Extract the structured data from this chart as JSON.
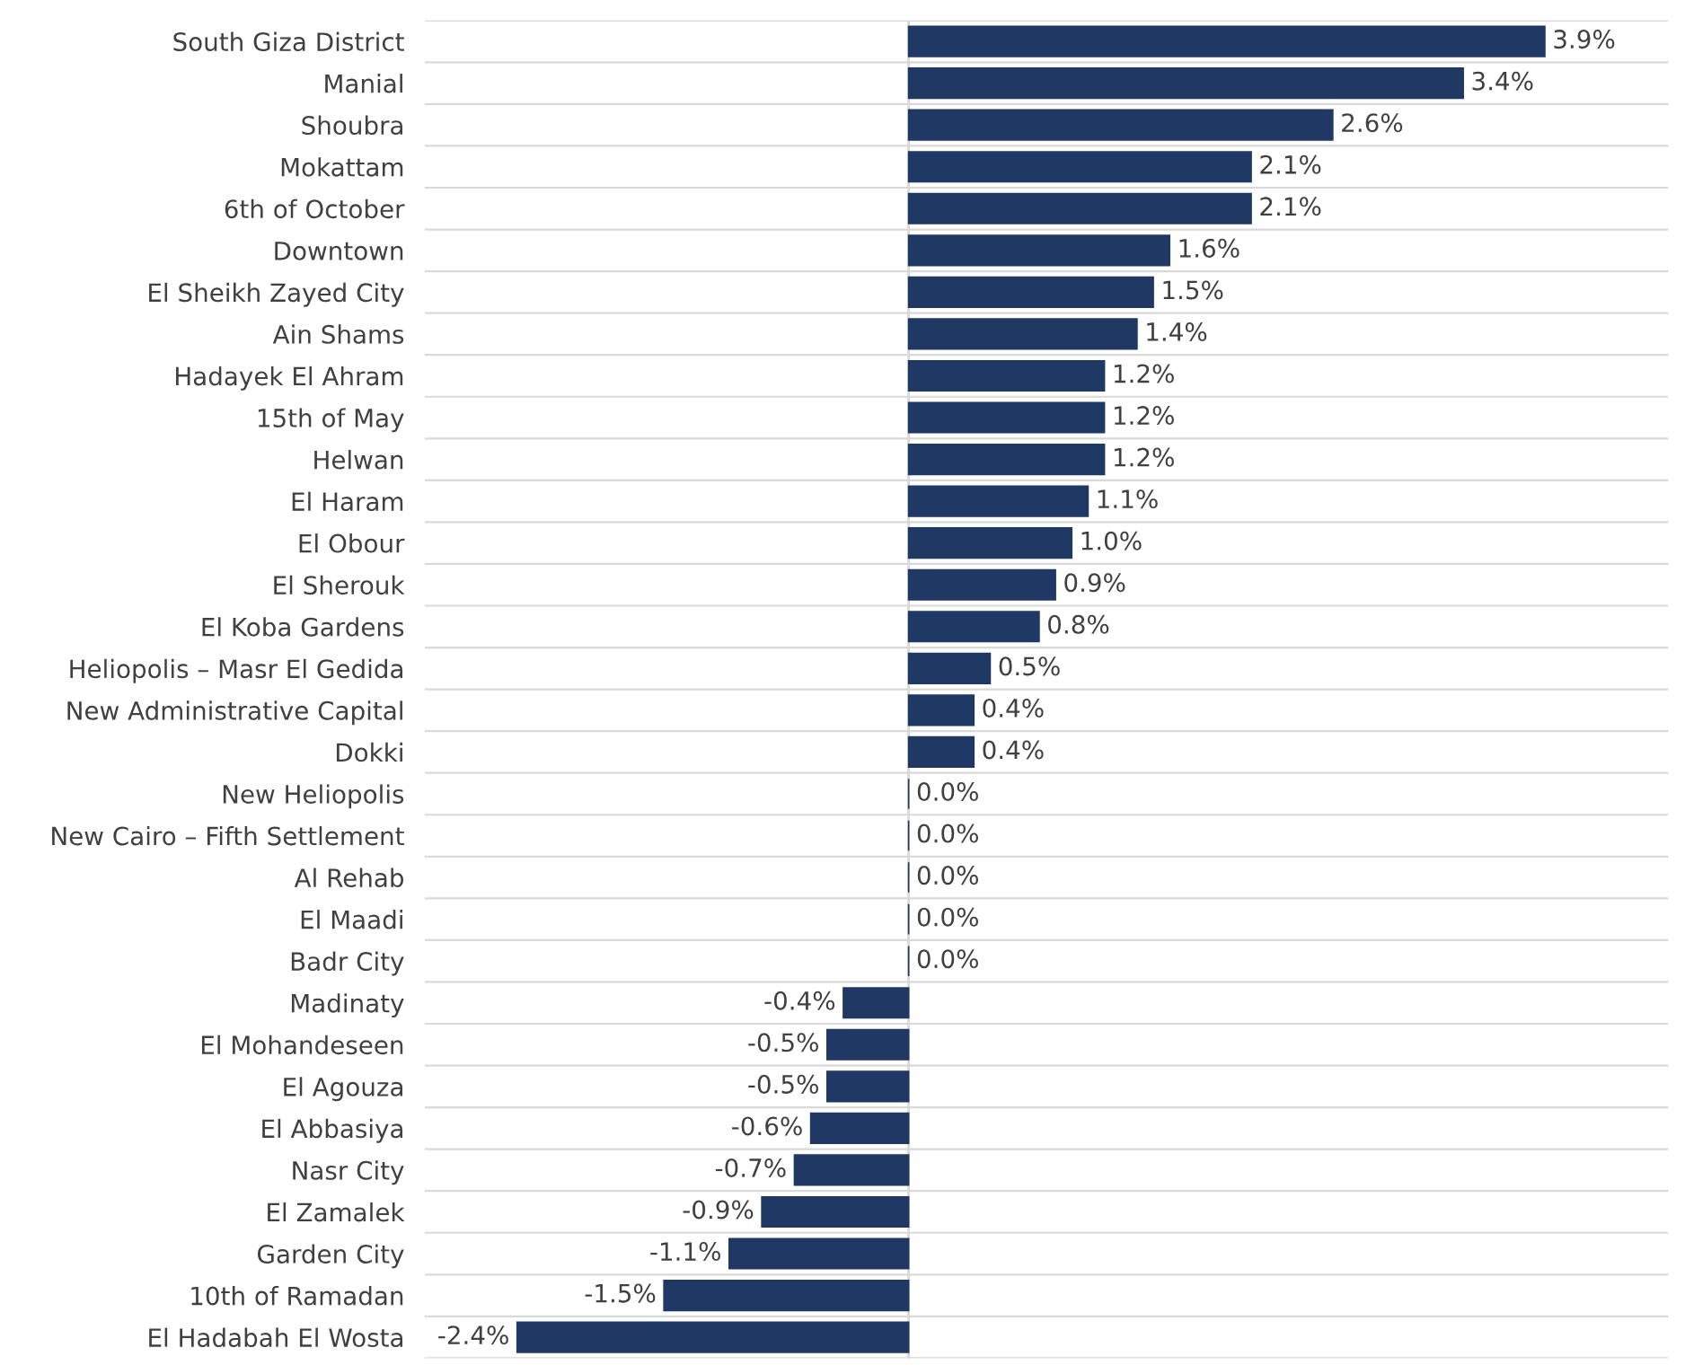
{
  "chart_data": {
    "type": "bar",
    "orientation": "horizontal",
    "data_labels": true,
    "grid": "y",
    "color": "#1f3864",
    "categories": [
      "South Giza District",
      "Manial",
      "Shoubra",
      "Mokattam",
      "6th of October",
      "Downtown",
      "El Sheikh Zayed City",
      "Ain Shams",
      "Hadayek El Ahram",
      "15th of May",
      "Helwan",
      "El Haram",
      "El Obour",
      "El Sherouk",
      "El Koba Gardens",
      "Heliopolis – Masr El Gedida",
      "New Administrative Capital",
      "Dokki",
      "New Heliopolis",
      "New Cairo – Fifth Settlement",
      "Al Rehab",
      "El Maadi",
      "Badr City",
      "Madinaty",
      "El Mohandeseen",
      "El Agouza",
      "El Abbasiya",
      "Nasr City",
      "El Zamalek",
      "Garden City",
      "10th of Ramadan",
      "El Hadabah El Wosta"
    ],
    "values": [
      3.9,
      3.4,
      2.6,
      2.1,
      2.1,
      1.6,
      1.5,
      1.4,
      1.2,
      1.2,
      1.2,
      1.1,
      1.0,
      0.9,
      0.8,
      0.5,
      0.4,
      0.4,
      0.0,
      0.0,
      0.0,
      0.0,
      0.0,
      -0.4,
      -0.5,
      -0.5,
      -0.6,
      -0.7,
      -0.9,
      -1.1,
      -1.5,
      -2.4
    ],
    "value_labels": [
      "3.9%",
      "3.4%",
      "2.6%",
      "2.1%",
      "2.1%",
      "1.6%",
      "1.5%",
      "1.4%",
      "1.2%",
      "1.2%",
      "1.2%",
      "1.1%",
      "1.0%",
      "0.9%",
      "0.8%",
      "0.5%",
      "0.4%",
      "0.4%",
      "0.0%",
      "0.0%",
      "0.0%",
      "0.0%",
      "0.0%",
      "-0.4%",
      "-0.5%",
      "-0.5%",
      "-0.6%",
      "-0.7%",
      "-0.9%",
      "-1.1%",
      "-1.5%",
      "-2.4%"
    ]
  }
}
